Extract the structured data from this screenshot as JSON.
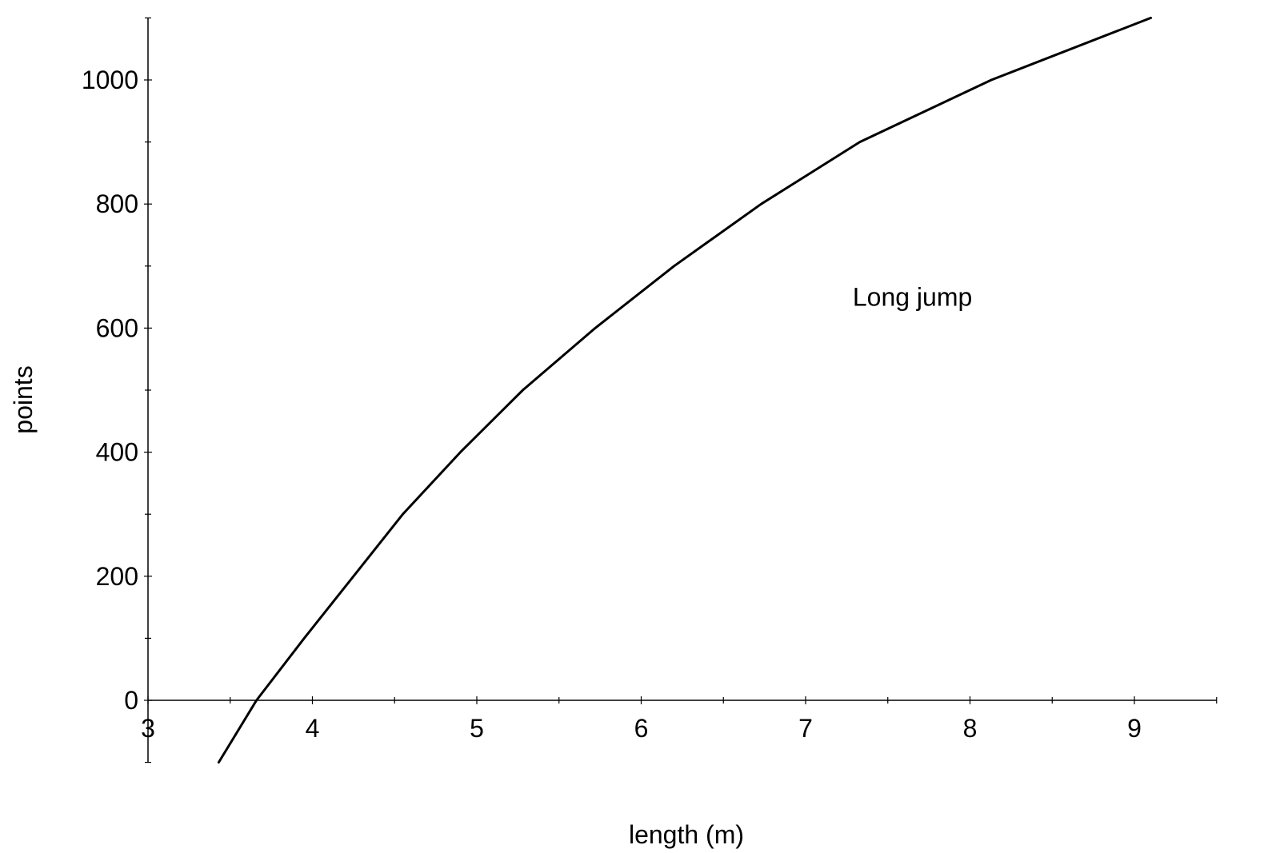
{
  "chart_data": {
    "type": "line",
    "title": "",
    "xlabel": "length (m)",
    "ylabel": "points",
    "xlim": [
      3,
      9.5
    ],
    "ylim": [
      -100,
      1100
    ],
    "x_ticks": [
      3,
      4,
      5,
      6,
      7,
      8,
      9
    ],
    "y_ticks": [
      0,
      200,
      400,
      600,
      800,
      1000
    ],
    "x_minor_step": 0.5,
    "y_minor_step": 100,
    "grid": false,
    "annotations": [
      {
        "text": "Long jump",
        "x": 7.65,
        "y": 650
      }
    ],
    "series": [
      {
        "x": [
          3.43,
          3.66,
          3.95,
          4.25,
          4.55,
          4.9,
          5.28,
          5.72,
          6.2,
          6.73,
          7.33,
          8.13,
          9.1
        ],
        "y": [
          -100,
          0,
          100,
          200,
          300,
          400,
          500,
          600,
          700,
          800,
          900,
          1000,
          1100
        ]
      }
    ]
  }
}
